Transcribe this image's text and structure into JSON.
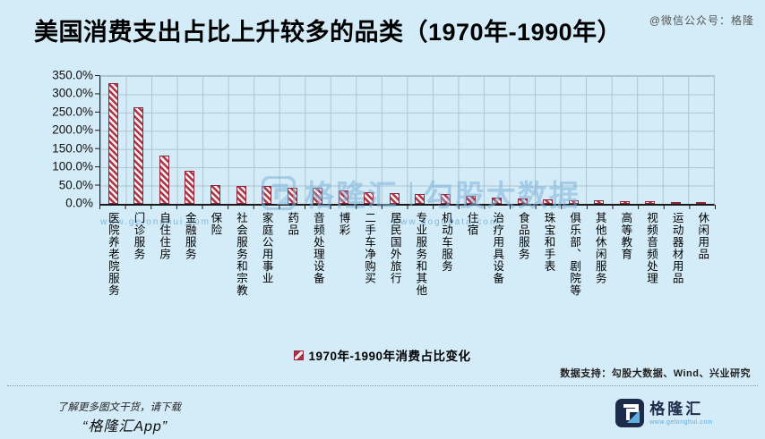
{
  "title": "美国消费支出占比上升较多的品类（1970年-1990年）",
  "watermark_top": "@微信公众号：格隆",
  "chart_data": {
    "type": "bar",
    "title": "美国消费支出占比上升较多的品类（1970年-1990年）",
    "categories": [
      "医院养老院服务",
      "门诊服务",
      "自住住房",
      "金融服务",
      "保险",
      "社会服务和宗教",
      "家庭公用事业",
      "药品",
      "音频处理设备",
      "博彩",
      "二手车净购买",
      "居民国外旅行",
      "专业服务和其他",
      "机动车服务",
      "住宿",
      "治疗用具设备",
      "食品服务",
      "珠宝和手表",
      "俱乐部、剧院等",
      "其他休闲服务",
      "高等教育",
      "视频音频处理",
      "运动器材用品",
      "休闲用品"
    ],
    "values": [
      330,
      265,
      132,
      90,
      52,
      50,
      48,
      45,
      43,
      36,
      32,
      29,
      28,
      26,
      22,
      18,
      15,
      13,
      11,
      10,
      8,
      7,
      5,
      4
    ],
    "unit": "%",
    "xlabel": "",
    "ylabel": "",
    "ylim": [
      0,
      350
    ],
    "y_ticks": [
      "350.0%",
      "300.0%",
      "250.0%",
      "200.0%",
      "150.0%",
      "100.0%",
      "50.0%",
      "0.0%"
    ],
    "grid": true,
    "legend_position": "bottom",
    "legend_label": "1970年-1990年消费占比变化",
    "bar_color": "#ad3547",
    "bar_pattern": "diagonal-hatch"
  },
  "watermark_center": {
    "brand": "格隆汇",
    "separator": "|",
    "partner": "勾股大数据",
    "url_left": "www.gelonghui.com",
    "url_right": "www.gogudata.com"
  },
  "data_support": "数据支持：勾股大数据、Wind、兴业研究",
  "footer": {
    "promo_line1": "了解更多图文干货，请下载",
    "promo_line2": "“格隆汇App”",
    "logo_name": "格隆汇",
    "logo_url": "www.gelonghui.com"
  }
}
